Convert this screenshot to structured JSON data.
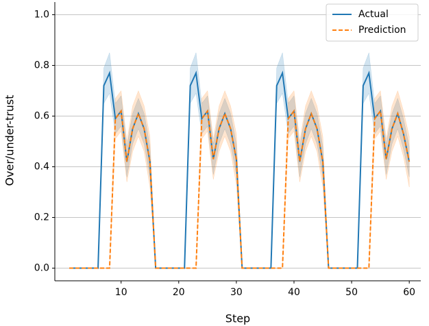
{
  "chart_data": {
    "type": "line",
    "x_label": "Step",
    "y_label": "Over/under-trust",
    "x": [
      1,
      2,
      3,
      4,
      5,
      6,
      7,
      8,
      9,
      10,
      11,
      12,
      13,
      14,
      15,
      16,
      17,
      18,
      19,
      20,
      21,
      22,
      23,
      24,
      25,
      26,
      27,
      28,
      29,
      30,
      31,
      32,
      33,
      34,
      35,
      36,
      37,
      38,
      39,
      40,
      41,
      42,
      43,
      44,
      45,
      46,
      47,
      48,
      49,
      50,
      51,
      52,
      53,
      54,
      55,
      56,
      57,
      58,
      59,
      60
    ],
    "series": [
      {
        "name": "Actual",
        "color": "#1f77b4",
        "dash": false,
        "values": [
          0,
          0,
          0,
          0,
          0,
          0,
          0.72,
          0.77,
          0.59,
          0.62,
          0.42,
          0.55,
          0.61,
          0.55,
          0.42,
          0,
          0,
          0,
          0,
          0,
          0,
          0.72,
          0.77,
          0.59,
          0.62,
          0.43,
          0.55,
          0.61,
          0.55,
          0.43,
          0,
          0,
          0,
          0,
          0,
          0,
          0.72,
          0.77,
          0.59,
          0.62,
          0.42,
          0.55,
          0.61,
          0.55,
          0.42,
          0,
          0,
          0,
          0,
          0,
          0,
          0.72,
          0.77,
          0.59,
          0.62,
          0.43,
          0.55,
          0.61,
          0.53,
          0.42
        ],
        "band": [
          0,
          0,
          0,
          0,
          0,
          0,
          0.07,
          0.08,
          0.06,
          0.06,
          0.06,
          0.06,
          0.06,
          0.06,
          0.06,
          0,
          0,
          0,
          0,
          0,
          0,
          0.07,
          0.08,
          0.06,
          0.06,
          0.06,
          0.06,
          0.06,
          0.06,
          0.06,
          0,
          0,
          0,
          0,
          0,
          0,
          0.07,
          0.08,
          0.06,
          0.06,
          0.06,
          0.06,
          0.06,
          0.06,
          0.06,
          0,
          0,
          0,
          0,
          0,
          0,
          0.07,
          0.08,
          0.06,
          0.06,
          0.06,
          0.06,
          0.06,
          0.06,
          0.06
        ]
      },
      {
        "name": "Prediction",
        "color": "#ff7f0e",
        "dash": true,
        "values": [
          0,
          0,
          0,
          0,
          0,
          0,
          0,
          0,
          0.59,
          0.62,
          0.42,
          0.55,
          0.61,
          0.55,
          0.42,
          0,
          0,
          0,
          0,
          0,
          0,
          0,
          0,
          0.59,
          0.62,
          0.43,
          0.55,
          0.61,
          0.55,
          0.43,
          0,
          0,
          0,
          0,
          0,
          0,
          0,
          0,
          0.59,
          0.62,
          0.42,
          0.55,
          0.61,
          0.55,
          0.42,
          0,
          0,
          0,
          0,
          0,
          0,
          0,
          0,
          0.59,
          0.62,
          0.43,
          0.55,
          0.61,
          0.53,
          0.42
        ],
        "band": [
          0,
          0,
          0,
          0,
          0,
          0,
          0,
          0,
          0.08,
          0.08,
          0.08,
          0.09,
          0.09,
          0.09,
          0.1,
          0,
          0,
          0,
          0,
          0,
          0,
          0,
          0,
          0.08,
          0.08,
          0.08,
          0.09,
          0.09,
          0.09,
          0.1,
          0,
          0,
          0,
          0,
          0,
          0,
          0,
          0,
          0.08,
          0.08,
          0.08,
          0.09,
          0.09,
          0.09,
          0.1,
          0,
          0,
          0,
          0,
          0,
          0,
          0,
          0,
          0.08,
          0.08,
          0.08,
          0.09,
          0.09,
          0.09,
          0.1
        ]
      }
    ],
    "xlim": [
      -1.5,
      62
    ],
    "ylim": [
      -0.05,
      1.05
    ],
    "xticks": [
      10,
      20,
      30,
      40,
      50,
      60
    ],
    "yticks": [
      {
        "value": 0,
        "label": "0.0"
      },
      0.2,
      0.4,
      0.6,
      0.8,
      {
        "value": 1,
        "label": "1.0"
      }
    ],
    "grid": "y",
    "legend": "upper right"
  }
}
